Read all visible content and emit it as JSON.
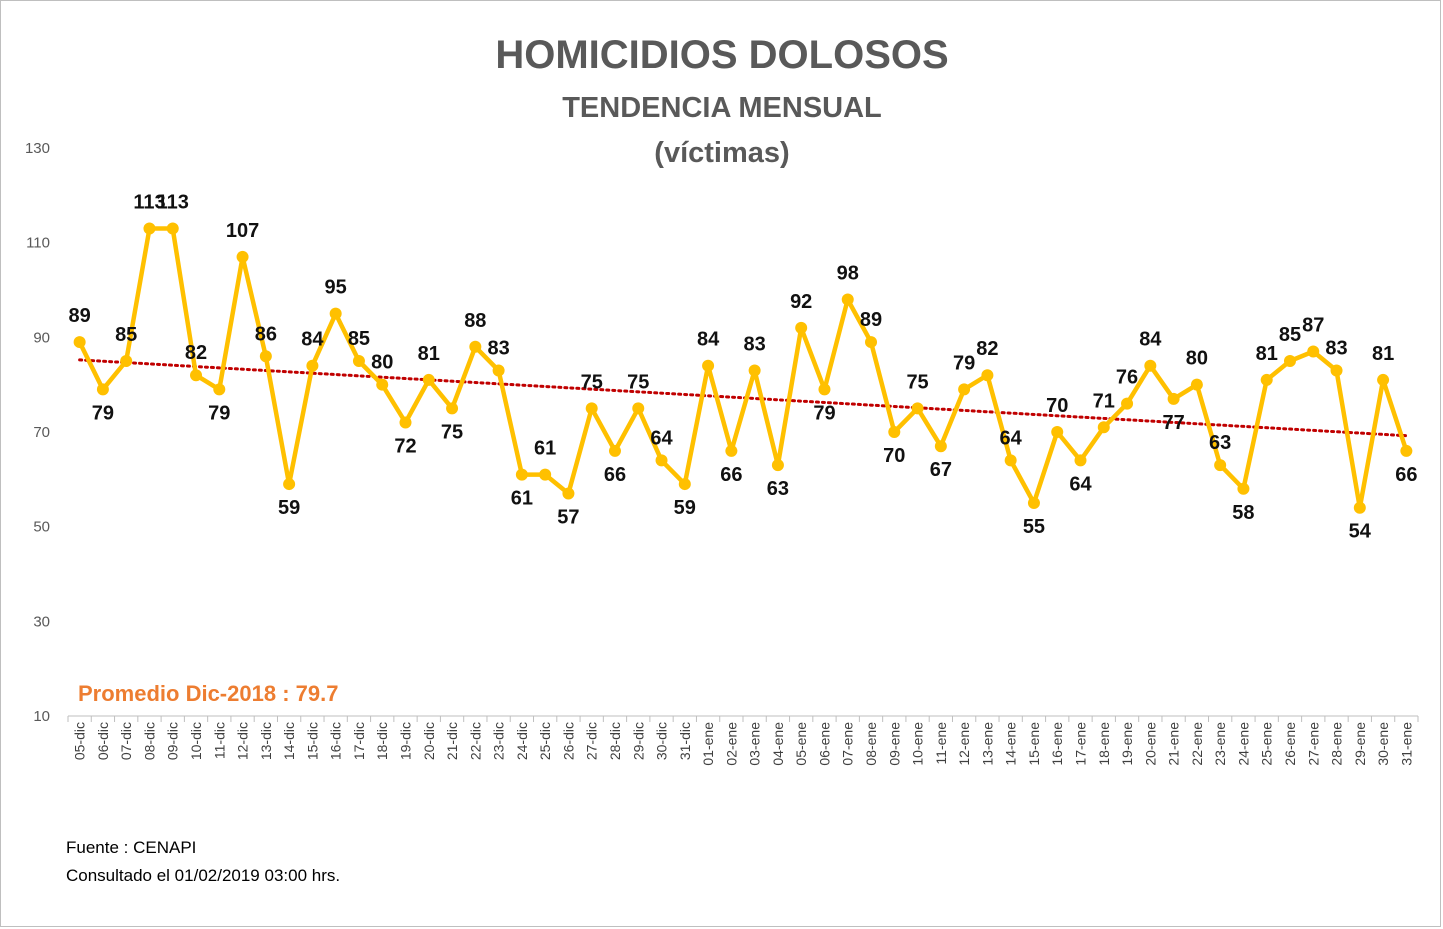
{
  "chart_data": {
    "type": "line",
    "title": "HOMICIDIOS DOLOSOS",
    "subtitle": "TENDENCIA MENSUAL",
    "subtitle2": "(víctimas)",
    "categories": [
      "05-dic",
      "06-dic",
      "07-dic",
      "08-dic",
      "09-dic",
      "10-dic",
      "11-dic",
      "12-dic",
      "13-dic",
      "14-dic",
      "15-dic",
      "16-dic",
      "17-dic",
      "18-dic",
      "19-dic",
      "20-dic",
      "21-dic",
      "22-dic",
      "23-dic",
      "24-dic",
      "25-dic",
      "26-dic",
      "27-dic",
      "28-dic",
      "29-dic",
      "30-dic",
      "31-dic",
      "01-ene",
      "02-ene",
      "03-ene",
      "04-ene",
      "05-ene",
      "06-ene",
      "07-ene",
      "08-ene",
      "09-ene",
      "10-ene",
      "11-ene",
      "12-ene",
      "13-ene",
      "14-ene",
      "15-ene",
      "16-ene",
      "17-ene",
      "18-ene",
      "19-ene",
      "20-ene",
      "21-ene",
      "22-ene",
      "23-ene",
      "24-ene",
      "25-ene",
      "26-ene",
      "27-ene",
      "28-ene",
      "29-ene",
      "30-ene",
      "31-ene"
    ],
    "series": [
      {
        "values": [
          89,
          79,
          85,
          113,
          113,
          82,
          79,
          107,
          86,
          59,
          84,
          95,
          85,
          80,
          72,
          81,
          75,
          88,
          83,
          61,
          61,
          57,
          75,
          66,
          75,
          64,
          59,
          84,
          66,
          83,
          63,
          92,
          79,
          98,
          89,
          70,
          75,
          67,
          79,
          82,
          64,
          55,
          70,
          64,
          71,
          76,
          84,
          77,
          80,
          63,
          58,
          81,
          85,
          87,
          83,
          54,
          81,
          66
        ],
        "color": "#FFC000"
      }
    ],
    "trendline": {
      "type": "linear",
      "color": "#C00000",
      "style": "dotted"
    },
    "yticks": [
      10,
      30,
      50,
      70,
      90,
      110,
      130
    ],
    "ylim": [
      10,
      130
    ],
    "grid": false,
    "legend": "none",
    "annotation": "Promedio Dic-2018 : 79.7",
    "annotation_color": "#ED7D31"
  },
  "footer": {
    "source": "Fuente : CENAPI",
    "consulted": "Consultado el 01/02/2019  03:00 hrs."
  }
}
